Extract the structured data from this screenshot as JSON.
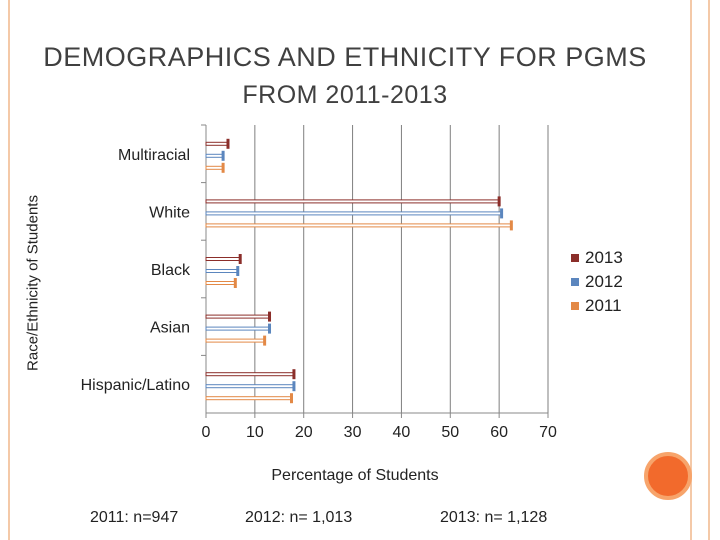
{
  "title": {
    "line1": "DEMOGRAPHICS AND ETHNICITY FOR PGMS",
    "line2": "FROM 2011-2013"
  },
  "colors": {
    "2013": "#8b2e2a",
    "2012": "#5b86be",
    "2011": "#e38946",
    "accent": "#f26a2c",
    "frame": "#f4c9a8",
    "axis": "#888888",
    "grid": "#7f7f7f"
  },
  "chart_data": {
    "type": "bar",
    "orientation": "horizontal",
    "title": "DEMOGRAPHICS AND ETHNICITY FOR PGMS FROM 2011-2013",
    "xlabel": "Percentage  of Students",
    "ylabel": "Race/Ethnicity of Students",
    "xlim": [
      0,
      70
    ],
    "xticks": [
      "0",
      "10",
      "20",
      "30",
      "40",
      "50",
      "60",
      "70"
    ],
    "grid": true,
    "legend_position": "right",
    "categories": [
      "Multiracial",
      "White",
      "Black",
      "Asian",
      "Hispanic/Latino"
    ],
    "series": [
      {
        "name": "2013",
        "values": [
          4.5,
          60,
          7,
          13,
          18
        ]
      },
      {
        "name": "2012",
        "values": [
          3.5,
          60.5,
          6.5,
          13,
          18
        ]
      },
      {
        "name": "2011",
        "values": [
          3.5,
          62.5,
          6,
          12,
          17.5
        ]
      }
    ]
  },
  "notes": {
    "n2011": "2011: n=947",
    "n2012": "2012: n= 1,013",
    "n2013": "2013: n= 1,128"
  }
}
